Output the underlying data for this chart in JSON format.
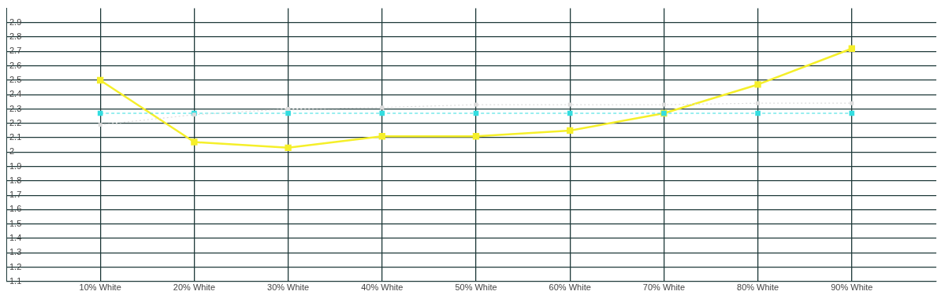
{
  "chart_data": {
    "type": "line",
    "categories": [
      "10% White",
      "20% White",
      "30% White",
      "40% White",
      "50% White",
      "60% White",
      "70% White",
      "80% White",
      "90% White"
    ],
    "series": [
      {
        "color": "#dcdcdc",
        "line_style": "dotted",
        "values": [
          2.19,
          2.26,
          2.3,
          2.31,
          2.33,
          2.33,
          2.33,
          2.34,
          2.34
        ]
      },
      {
        "color": "#33dde0",
        "line_style": "dashed",
        "values": [
          2.27,
          2.27,
          2.27,
          2.27,
          2.27,
          2.27,
          2.27,
          2.27,
          2.27
        ]
      },
      {
        "color": "#f5ef2a",
        "line_style": "solid",
        "values": [
          2.5,
          2.07,
          2.03,
          2.11,
          2.11,
          2.15,
          2.27,
          2.47,
          2.72
        ]
      }
    ],
    "ylim": [
      1.1,
      3.0
    ],
    "yticks": [
      1.1,
      1.2,
      1.3,
      1.4,
      1.5,
      1.6,
      1.7,
      1.8,
      1.9,
      2,
      2.1,
      2.2,
      2.3,
      2.4,
      2.5,
      2.6,
      2.7,
      2.8,
      2.9
    ],
    "grid": true,
    "marker": "square",
    "legend": false
  }
}
